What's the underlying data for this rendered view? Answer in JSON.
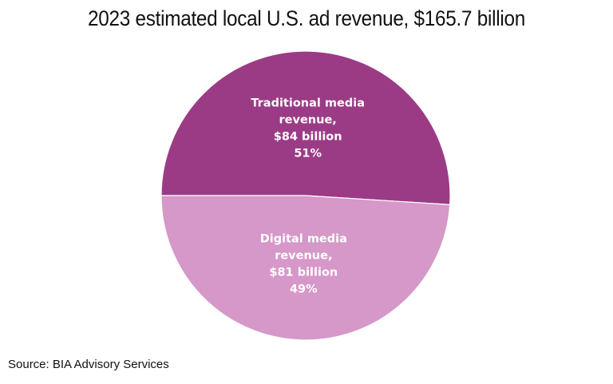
{
  "chart_data": {
    "type": "pie",
    "title": "2023 estimated local U.S. ad revenue, $165.7 billion",
    "slices": [
      {
        "name": "Traditional media revenue",
        "value": 84,
        "percent": 51,
        "color": "#9b3b85",
        "label_lines": [
          "Traditional media",
          "revenue,",
          "$84 billion",
          "51%"
        ]
      },
      {
        "name": "Digital media revenue",
        "value": 81,
        "percent": 49,
        "color": "#d598c8",
        "label_lines": [
          "Digital media",
          "revenue,",
          "$81 billion",
          "49%"
        ]
      }
    ],
    "units": "billion USD",
    "source": "Source: BIA Advisory Services"
  }
}
